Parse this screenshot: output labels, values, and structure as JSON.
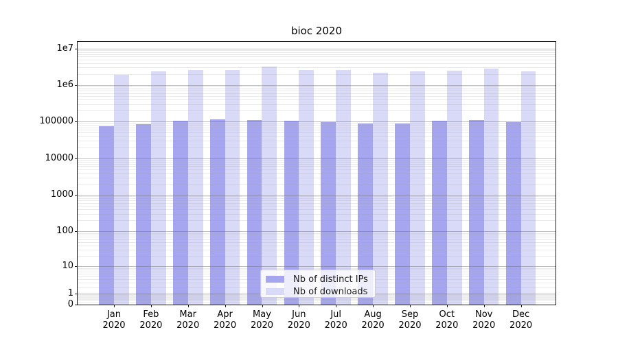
{
  "chart_data": {
    "type": "bar",
    "title": "bioc 2020",
    "year": "2020",
    "categories": [
      "Jan",
      "Feb",
      "Mar",
      "Apr",
      "May",
      "Jun",
      "Jul",
      "Aug",
      "Sep",
      "Oct",
      "Nov",
      "Dec"
    ],
    "series": [
      {
        "name": "Nb of distinct IPs",
        "color": "#a5a5f0",
        "values": [
          75000,
          86000,
          107000,
          115000,
          111000,
          107000,
          98000,
          88000,
          87000,
          107000,
          111000,
          98000
        ]
      },
      {
        "name": "Nb of downloads",
        "color": "#d9d9f8",
        "values": [
          1920000,
          2390000,
          2530000,
          2530000,
          3230000,
          2530000,
          2530000,
          2160000,
          2390000,
          2460000,
          2760000,
          2330000
        ]
      }
    ],
    "yscale": "log10(value+1)",
    "ylim": [
      0,
      15000000
    ],
    "yticks": [
      {
        "label": "1e7",
        "value": 10000000
      },
      {
        "label": "1e6",
        "value": 1000000
      },
      {
        "label": "100000",
        "value": 100000
      },
      {
        "label": "10000",
        "value": 10000
      },
      {
        "label": "1000",
        "value": 1000
      },
      {
        "label": "100",
        "value": 100
      },
      {
        "label": "10",
        "value": 10
      },
      {
        "label": "1",
        "value": 1
      },
      {
        "label": "0",
        "value": 0
      }
    ],
    "grid": {
      "major": true,
      "minor": true
    },
    "legend": {
      "position": "lower center"
    }
  }
}
